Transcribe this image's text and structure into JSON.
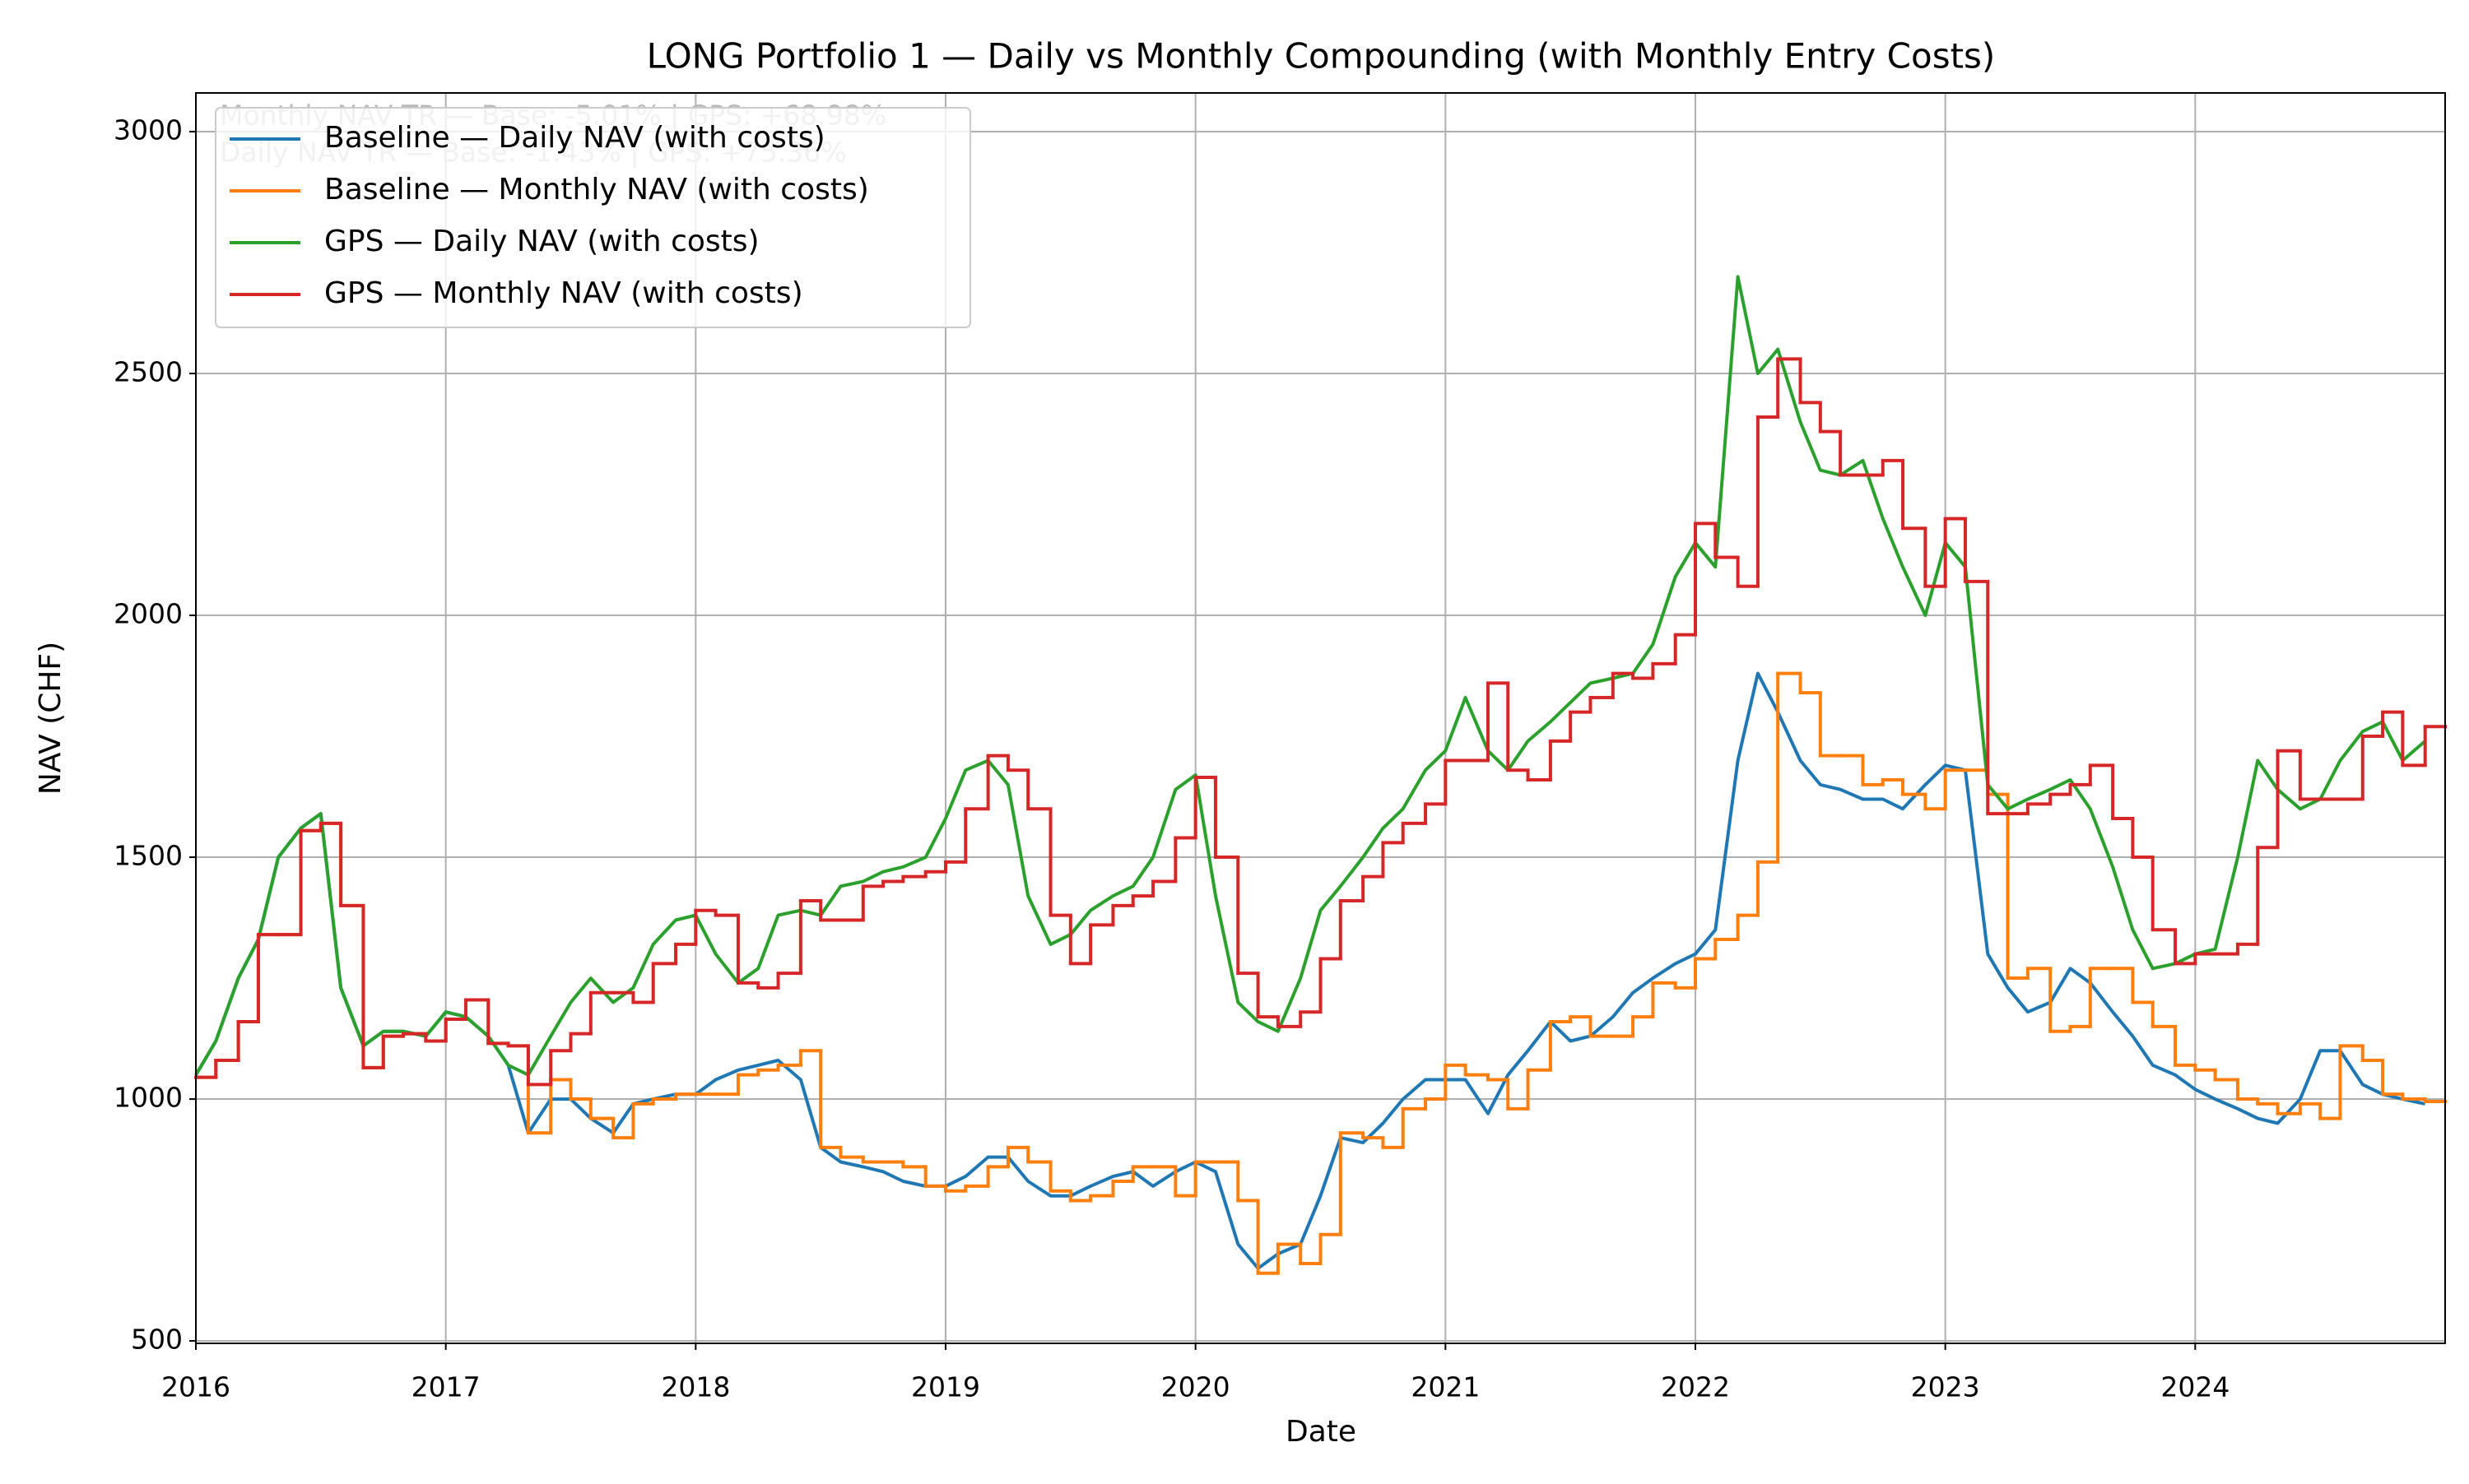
{
  "chart_data": {
    "type": "line",
    "title": "LONG Portfolio 1 — Daily vs Monthly Compounding (with Monthly Entry Costs)",
    "x_label": "Date",
    "y_label": "NAV (CHF)",
    "annotations": [
      "Monthly NAV TR — Base: -5.01% | GPS: +68.98%",
      "Daily NAV TR — Base: -1.43% | GPS: +75.36%"
    ],
    "grid": true,
    "legend": "upper left",
    "xlim": [
      2016,
      2025
    ],
    "xticks": [
      2016,
      2017,
      2018,
      2019,
      2020,
      2021,
      2022,
      2023,
      2024
    ],
    "ylim": [
      495,
      3080
    ],
    "yticks": [
      500,
      1000,
      1500,
      2000,
      2500,
      3000
    ],
    "x": [
      2016.0,
      2016.08,
      2016.17,
      2016.25,
      2016.33,
      2016.42,
      2016.5,
      2016.58,
      2016.67,
      2016.75,
      2016.83,
      2016.92,
      2017.0,
      2017.08,
      2017.17,
      2017.25,
      2017.33,
      2017.42,
      2017.5,
      2017.58,
      2017.67,
      2017.75,
      2017.83,
      2017.92,
      2018.0,
      2018.08,
      2018.17,
      2018.25,
      2018.33,
      2018.42,
      2018.5,
      2018.58,
      2018.67,
      2018.75,
      2018.83,
      2018.92,
      2019.0,
      2019.08,
      2019.17,
      2019.25,
      2019.33,
      2019.42,
      2019.5,
      2019.58,
      2019.67,
      2019.75,
      2019.83,
      2019.92,
      2020.0,
      2020.08,
      2020.17,
      2020.25,
      2020.33,
      2020.42,
      2020.5,
      2020.58,
      2020.67,
      2020.75,
      2020.83,
      2020.92,
      2021.0,
      2021.08,
      2021.17,
      2021.25,
      2021.33,
      2021.42,
      2021.5,
      2021.58,
      2021.67,
      2021.75,
      2021.83,
      2021.92,
      2022.0,
      2022.08,
      2022.17,
      2022.25,
      2022.33,
      2022.42,
      2022.5,
      2022.58,
      2022.67,
      2022.75,
      2022.83,
      2022.92,
      2023.0,
      2023.08,
      2023.17,
      2023.25,
      2023.33,
      2023.42,
      2023.5,
      2023.58,
      2023.67,
      2023.75,
      2023.83,
      2023.92,
      2024.0,
      2024.08,
      2024.17,
      2024.25,
      2024.33,
      2024.42,
      2024.5,
      2024.58,
      2024.67,
      2024.75,
      2024.83,
      2024.92
    ],
    "series": [
      {
        "name": "Baseline — Daily NAV (with costs)",
        "color": "#1f77b4",
        "drawstyle": "default",
        "values": [
          1050,
          1120,
          1250,
          1330,
          1500,
          1560,
          1590,
          1230,
          1110,
          1140,
          1140,
          1130,
          1180,
          1170,
          1130,
          1070,
          930,
          1000,
          1000,
          960,
          930,
          990,
          1000,
          1010,
          1010,
          1040,
          1060,
          1070,
          1080,
          1040,
          900,
          870,
          860,
          850,
          830,
          820,
          820,
          840,
          880,
          880,
          830,
          800,
          800,
          820,
          840,
          850,
          820,
          850,
          870,
          850,
          700,
          650,
          680,
          700,
          800,
          920,
          910,
          950,
          1000,
          1040,
          1040,
          1040,
          970,
          1050,
          1100,
          1160,
          1120,
          1130,
          1170,
          1220,
          1250,
          1280,
          1300,
          1350,
          1700,
          1880,
          1800,
          1700,
          1650,
          1640,
          1620,
          1620,
          1600,
          1650,
          1690,
          1680,
          1300,
          1230,
          1180,
          1200,
          1270,
          1240,
          1180,
          1130,
          1070,
          1050,
          1020,
          1000,
          980,
          960,
          950,
          1000,
          1100,
          1100,
          1030,
          1010,
          1000,
          990
        ]
      },
      {
        "name": "Baseline — Monthly NAV (with costs)",
        "color": "#ff7f0e",
        "drawstyle": "steps-post",
        "values": [
          1045,
          1080,
          1160,
          1340,
          1340,
          1555,
          1570,
          1400,
          1065,
          1130,
          1135,
          1120,
          1165,
          1205,
          1115,
          1110,
          930,
          1040,
          1000,
          960,
          920,
          990,
          1000,
          1010,
          1010,
          1010,
          1050,
          1060,
          1070,
          1100,
          900,
          880,
          870,
          870,
          860,
          820,
          810,
          820,
          860,
          900,
          870,
          810,
          790,
          800,
          830,
          860,
          860,
          800,
          870,
          870,
          790,
          640,
          700,
          660,
          720,
          930,
          920,
          900,
          980,
          1000,
          1070,
          1050,
          1040,
          980,
          1060,
          1160,
          1170,
          1130,
          1130,
          1170,
          1240,
          1230,
          1290,
          1330,
          1380,
          1490,
          1880,
          1840,
          1710,
          1710,
          1650,
          1660,
          1630,
          1600,
          1680,
          1680,
          1630,
          1250,
          1270,
          1140,
          1150,
          1270,
          1270,
          1200,
          1150,
          1070,
          1060,
          1040,
          1000,
          990,
          970,
          990,
          960,
          1110,
          1080,
          1010,
          1000,
          995
        ]
      },
      {
        "name": "GPS — Daily NAV (with costs)",
        "color": "#2ca02c",
        "drawstyle": "default",
        "values": [
          1050,
          1120,
          1250,
          1330,
          1500,
          1560,
          1590,
          1230,
          1110,
          1140,
          1140,
          1130,
          1180,
          1170,
          1130,
          1070,
          1050,
          1130,
          1200,
          1250,
          1200,
          1230,
          1320,
          1370,
          1380,
          1300,
          1240,
          1270,
          1380,
          1390,
          1380,
          1440,
          1450,
          1470,
          1480,
          1500,
          1580,
          1680,
          1700,
          1650,
          1420,
          1320,
          1340,
          1390,
          1420,
          1440,
          1500,
          1640,
          1670,
          1420,
          1200,
          1160,
          1140,
          1250,
          1390,
          1440,
          1500,
          1560,
          1600,
          1680,
          1720,
          1830,
          1720,
          1680,
          1740,
          1780,
          1820,
          1860,
          1870,
          1880,
          1940,
          2080,
          2150,
          2100,
          2700,
          2500,
          2550,
          2400,
          2300,
          2290,
          2320,
          2200,
          2100,
          2000,
          2150,
          2100,
          1650,
          1600,
          1620,
          1640,
          1660,
          1600,
          1480,
          1350,
          1270,
          1280,
          1300,
          1310,
          1500,
          1700,
          1640,
          1600,
          1620,
          1700,
          1760,
          1780,
          1700,
          1740
        ]
      },
      {
        "name": "GPS — Monthly NAV (with costs)",
        "color": "#d62728",
        "drawstyle": "steps-post",
        "values": [
          1045,
          1080,
          1160,
          1340,
          1340,
          1555,
          1570,
          1400,
          1065,
          1130,
          1135,
          1120,
          1165,
          1205,
          1115,
          1110,
          1030,
          1100,
          1135,
          1220,
          1220,
          1200,
          1280,
          1320,
          1390,
          1380,
          1240,
          1230,
          1260,
          1410,
          1370,
          1370,
          1440,
          1450,
          1460,
          1470,
          1490,
          1600,
          1710,
          1680,
          1600,
          1380,
          1280,
          1360,
          1400,
          1420,
          1450,
          1540,
          1665,
          1500,
          1260,
          1170,
          1150,
          1180,
          1290,
          1410,
          1460,
          1530,
          1570,
          1610,
          1700,
          1700,
          1860,
          1680,
          1660,
          1740,
          1800,
          1830,
          1880,
          1870,
          1900,
          1960,
          2190,
          2120,
          2060,
          2410,
          2530,
          2440,
          2380,
          2290,
          2290,
          2320,
          2180,
          2060,
          2200,
          2070,
          1590,
          1590,
          1610,
          1630,
          1650,
          1690,
          1580,
          1500,
          1350,
          1280,
          1300,
          1300,
          1320,
          1520,
          1720,
          1620,
          1620,
          1620,
          1750,
          1800,
          1690,
          1770
        ]
      }
    ]
  }
}
